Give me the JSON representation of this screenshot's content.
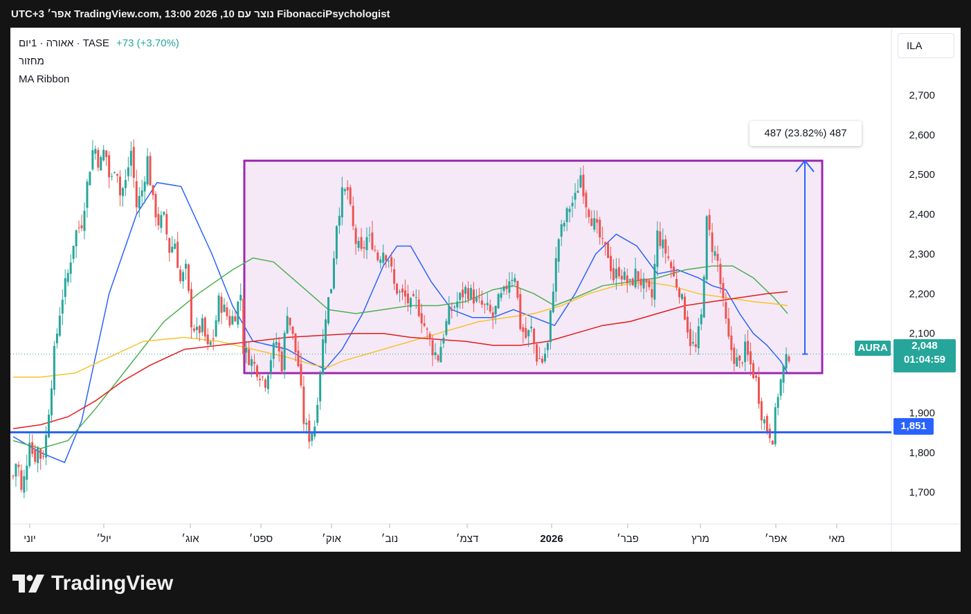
{
  "header": {
    "title": "FibonacciPsychologist נוצר עם TradingView.com, 13:00 2026 ,10 אפר׳ UTC+3"
  },
  "legend": {
    "symbol_line": "אאורה · 1יום · TASE",
    "change": "+73 (+3.70%)",
    "indicator_volume": "מחזור",
    "indicator_ma": "MA Ribbon"
  },
  "currency_button": "ILA",
  "measure_label": "487 (23.82%) 487",
  "symbol_tag": "AURA",
  "price_tag": {
    "price": "2,048",
    "countdown": "01:04:59"
  },
  "support_tag": "1,851",
  "logo": "TradingView",
  "colors": {
    "up": "#26a69a",
    "down": "#ef5350",
    "ma_fast": "#2962ff",
    "ma_mid": "#4caf50",
    "ma_slow": "#f9c22b",
    "ma_long": "#e41a1a",
    "range_box": "#9c27b0",
    "support": "#2962ff"
  },
  "chart_data": {
    "type": "candlestick",
    "symbol": "AURA",
    "exchange": "TASE",
    "timeframe": "1D",
    "y_axis": {
      "ticks": [
        1700,
        1800,
        1900,
        2100,
        2200,
        2300,
        2400,
        2500,
        2600,
        2700
      ],
      "range": [
        1620,
        2870
      ],
      "position": "right"
    },
    "x_axis": {
      "ticks": [
        "יוני",
        "יול׳",
        "אוג׳",
        "ספט׳",
        "אוק׳",
        "נוב׳",
        "דצמ׳",
        "2026",
        "פבר׳",
        "מרץ",
        "אפר׳",
        "מאי"
      ]
    },
    "last_price": 2048,
    "support_level": 1851,
    "range_box": {
      "low": 2000,
      "high": 2535
    },
    "measure": {
      "from": 2048,
      "to": 2535,
      "change": 487,
      "change_pct": 23.82
    },
    "ohlc_path": [
      [
        0,
        1740
      ],
      [
        6,
        1790
      ],
      [
        12,
        1700
      ],
      [
        18,
        1750
      ],
      [
        24,
        1840
      ],
      [
        30,
        1780
      ],
      [
        36,
        1810
      ],
      [
        42,
        1780
      ],
      [
        48,
        1840
      ],
      [
        60,
        2050
      ],
      [
        70,
        2180
      ],
      [
        80,
        2250
      ],
      [
        90,
        2350
      ],
      [
        100,
        2380
      ],
      [
        110,
        2500
      ],
      [
        118,
        2580
      ],
      [
        126,
        2520
      ],
      [
        134,
        2570
      ],
      [
        142,
        2470
      ],
      [
        150,
        2540
      ],
      [
        156,
        2450
      ],
      [
        164,
        2480
      ],
      [
        172,
        2560
      ],
      [
        180,
        2420
      ],
      [
        188,
        2460
      ],
      [
        196,
        2540
      ],
      [
        204,
        2430
      ],
      [
        212,
        2380
      ],
      [
        220,
        2390
      ],
      [
        228,
        2310
      ],
      [
        236,
        2330
      ],
      [
        244,
        2230
      ],
      [
        252,
        2260
      ],
      [
        260,
        2130
      ],
      [
        268,
        2100
      ],
      [
        276,
        2120
      ],
      [
        284,
        2060
      ],
      [
        292,
        2090
      ],
      [
        300,
        2180
      ],
      [
        308,
        2160
      ],
      [
        316,
        2130
      ],
      [
        324,
        2150
      ],
      [
        332,
        2200
      ],
      [
        336,
        2060
      ],
      [
        344,
        2040
      ],
      [
        352,
        2020
      ],
      [
        360,
        2000
      ],
      [
        368,
        1980
      ],
      [
        376,
        2040
      ],
      [
        384,
        2080
      ],
      [
        392,
        2020
      ],
      [
        400,
        2160
      ],
      [
        408,
        2090
      ],
      [
        416,
        2020
      ],
      [
        424,
        1880
      ],
      [
        432,
        1840
      ],
      [
        440,
        1870
      ],
      [
        448,
        2010
      ],
      [
        456,
        2150
      ],
      [
        464,
        2220
      ],
      [
        472,
        2380
      ],
      [
        480,
        2450
      ],
      [
        488,
        2460
      ],
      [
        494,
        2380
      ],
      [
        500,
        2330
      ],
      [
        508,
        2300
      ],
      [
        516,
        2340
      ],
      [
        524,
        2330
      ],
      [
        532,
        2290
      ],
      [
        540,
        2310
      ],
      [
        548,
        2290
      ],
      [
        556,
        2220
      ],
      [
        564,
        2200
      ],
      [
        572,
        2190
      ],
      [
        580,
        2170
      ],
      [
        588,
        2180
      ],
      [
        596,
        2140
      ],
      [
        604,
        2100
      ],
      [
        612,
        2060
      ],
      [
        620,
        2040
      ],
      [
        628,
        2100
      ],
      [
        636,
        2150
      ],
      [
        644,
        2170
      ],
      [
        652,
        2190
      ],
      [
        660,
        2210
      ],
      [
        668,
        2200
      ],
      [
        676,
        2180
      ],
      [
        684,
        2170
      ],
      [
        692,
        2160
      ],
      [
        700,
        2140
      ],
      [
        708,
        2180
      ],
      [
        716,
        2200
      ],
      [
        724,
        2240
      ],
      [
        732,
        2250
      ],
      [
        740,
        2120
      ],
      [
        748,
        2090
      ],
      [
        756,
        2110
      ],
      [
        764,
        2040
      ],
      [
        772,
        2030
      ],
      [
        780,
        2070
      ],
      [
        788,
        2220
      ],
      [
        796,
        2340
      ],
      [
        804,
        2380
      ],
      [
        812,
        2420
      ],
      [
        820,
        2440
      ],
      [
        828,
        2500
      ],
      [
        836,
        2430
      ],
      [
        844,
        2390
      ],
      [
        852,
        2360
      ],
      [
        860,
        2320
      ],
      [
        868,
        2300
      ],
      [
        876,
        2240
      ],
      [
        884,
        2260
      ],
      [
        892,
        2240
      ],
      [
        900,
        2220
      ],
      [
        908,
        2250
      ],
      [
        916,
        2230
      ],
      [
        924,
        2210
      ],
      [
        932,
        2190
      ],
      [
        940,
        2350
      ],
      [
        948,
        2320
      ],
      [
        956,
        2290
      ],
      [
        964,
        2240
      ],
      [
        972,
        2210
      ],
      [
        980,
        2150
      ],
      [
        988,
        2080
      ],
      [
        996,
        2060
      ],
      [
        1004,
        2140
      ],
      [
        1012,
        2380
      ],
      [
        1020,
        2320
      ],
      [
        1028,
        2280
      ],
      [
        1036,
        2170
      ],
      [
        1044,
        2080
      ],
      [
        1052,
        2040
      ],
      [
        1060,
        2020
      ],
      [
        1068,
        2060
      ],
      [
        1076,
        2020
      ],
      [
        1084,
        1980
      ],
      [
        1092,
        1900
      ],
      [
        1100,
        1860
      ],
      [
        1108,
        1840
      ],
      [
        1116,
        1950
      ],
      [
        1124,
        2010
      ],
      [
        1132,
        2048
      ]
    ],
    "series": [
      {
        "name": "MA fast",
        "color": "#2962ff",
        "points": [
          [
            0,
            1840
          ],
          [
            40,
            1800
          ],
          [
            75,
            1775
          ],
          [
            100,
            1880
          ],
          [
            140,
            2200
          ],
          [
            180,
            2400
          ],
          [
            210,
            2480
          ],
          [
            245,
            2470
          ],
          [
            290,
            2300
          ],
          [
            320,
            2170
          ],
          [
            350,
            2080
          ],
          [
            400,
            2060
          ],
          [
            430,
            2030
          ],
          [
            455,
            2010
          ],
          [
            480,
            2060
          ],
          [
            510,
            2150
          ],
          [
            540,
            2270
          ],
          [
            560,
            2320
          ],
          [
            580,
            2320
          ],
          [
            610,
            2230
          ],
          [
            640,
            2160
          ],
          [
            670,
            2140
          ],
          [
            700,
            2140
          ],
          [
            730,
            2160
          ],
          [
            760,
            2140
          ],
          [
            790,
            2120
          ],
          [
            820,
            2200
          ],
          [
            850,
            2300
          ],
          [
            880,
            2350
          ],
          [
            910,
            2320
          ],
          [
            940,
            2250
          ],
          [
            970,
            2260
          ],
          [
            1000,
            2240
          ],
          [
            1020,
            2220
          ],
          [
            1040,
            2210
          ],
          [
            1060,
            2150
          ],
          [
            1080,
            2100
          ],
          [
            1100,
            2070
          ],
          [
            1120,
            2030
          ],
          [
            1130,
            2000
          ]
        ]
      },
      {
        "name": "MA mid",
        "color": "#4caf50",
        "points": [
          [
            0,
            1830
          ],
          [
            40,
            1810
          ],
          [
            80,
            1830
          ],
          [
            120,
            1910
          ],
          [
            170,
            2020
          ],
          [
            220,
            2130
          ],
          [
            270,
            2200
          ],
          [
            320,
            2260
          ],
          [
            350,
            2290
          ],
          [
            380,
            2280
          ],
          [
            420,
            2220
          ],
          [
            460,
            2160
          ],
          [
            500,
            2150
          ],
          [
            540,
            2160
          ],
          [
            580,
            2170
          ],
          [
            620,
            2170
          ],
          [
            660,
            2180
          ],
          [
            700,
            2210
          ],
          [
            730,
            2220
          ],
          [
            760,
            2200
          ],
          [
            790,
            2170
          ],
          [
            820,
            2190
          ],
          [
            860,
            2220
          ],
          [
            900,
            2230
          ],
          [
            940,
            2240
          ],
          [
            980,
            2260
          ],
          [
            1020,
            2270
          ],
          [
            1050,
            2270
          ],
          [
            1080,
            2240
          ],
          [
            1110,
            2190
          ],
          [
            1130,
            2150
          ]
        ]
      },
      {
        "name": "MA slow",
        "color": "#f9c22b",
        "points": [
          [
            0,
            1990
          ],
          [
            40,
            1990
          ],
          [
            90,
            2000
          ],
          [
            140,
            2040
          ],
          [
            190,
            2080
          ],
          [
            250,
            2090
          ],
          [
            300,
            2080
          ],
          [
            350,
            2060
          ],
          [
            400,
            2040
          ],
          [
            440,
            2020
          ],
          [
            460,
            2015
          ],
          [
            480,
            2030
          ],
          [
            520,
            2050
          ],
          [
            560,
            2070
          ],
          [
            600,
            2090
          ],
          [
            640,
            2110
          ],
          [
            680,
            2130
          ],
          [
            720,
            2140
          ],
          [
            760,
            2150
          ],
          [
            800,
            2170
          ],
          [
            840,
            2200
          ],
          [
            880,
            2220
          ],
          [
            920,
            2230
          ],
          [
            960,
            2220
          ],
          [
            1000,
            2200
          ],
          [
            1040,
            2190
          ],
          [
            1080,
            2180
          ],
          [
            1110,
            2175
          ],
          [
            1130,
            2170
          ]
        ]
      },
      {
        "name": "MA long",
        "color": "#e41a1a",
        "points": [
          [
            0,
            1860
          ],
          [
            40,
            1870
          ],
          [
            80,
            1890
          ],
          [
            120,
            1930
          ],
          [
            160,
            1980
          ],
          [
            200,
            2020
          ],
          [
            250,
            2060
          ],
          [
            300,
            2070
          ],
          [
            350,
            2080
          ],
          [
            400,
            2090
          ],
          [
            450,
            2095
          ],
          [
            500,
            2100
          ],
          [
            540,
            2100
          ],
          [
            580,
            2090
          ],
          [
            620,
            2085
          ],
          [
            660,
            2080
          ],
          [
            700,
            2070
          ],
          [
            740,
            2070
          ],
          [
            780,
            2080
          ],
          [
            820,
            2100
          ],
          [
            860,
            2120
          ],
          [
            900,
            2130
          ],
          [
            940,
            2150
          ],
          [
            980,
            2170
          ],
          [
            1020,
            2180
          ],
          [
            1060,
            2190
          ],
          [
            1100,
            2200
          ],
          [
            1130,
            2205
          ]
        ]
      }
    ]
  }
}
